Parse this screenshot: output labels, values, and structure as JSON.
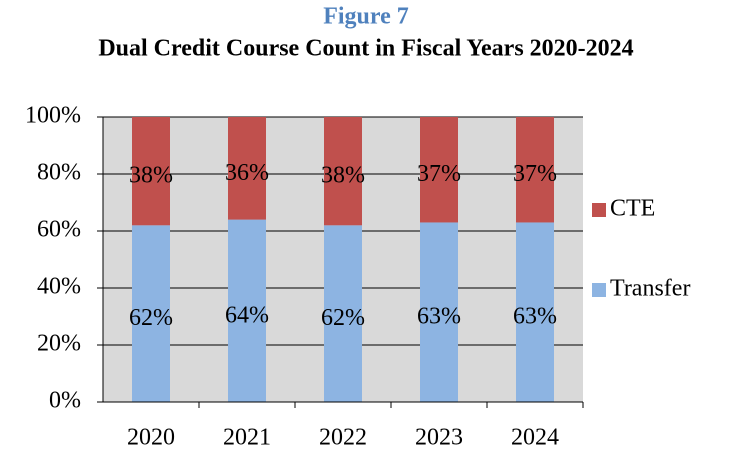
{
  "chart_data": {
    "type": "stacked_bar_100",
    "title": "Figure 7",
    "subtitle": "Dual Credit Course Count in Fiscal Years 2020-2024",
    "categories": [
      "2020",
      "2021",
      "2022",
      "2023",
      "2024"
    ],
    "series": [
      {
        "name": "Transfer",
        "color": "#8db4e2",
        "values": [
          62,
          64,
          62,
          63,
          63
        ],
        "value_labels": [
          "62%",
          "64%",
          "62%",
          "63%",
          "63%"
        ]
      },
      {
        "name": "CTE",
        "color": "#c0504d",
        "values": [
          38,
          36,
          38,
          37,
          37
        ],
        "value_labels": [
          "38%",
          "36%",
          "38%",
          "37%",
          "37%"
        ]
      }
    ],
    "ylim": [
      0,
      100
    ],
    "yticks": [
      {
        "value": 0,
        "label": "0%"
      },
      {
        "value": 20,
        "label": "20%"
      },
      {
        "value": 40,
        "label": "40%"
      },
      {
        "value": 60,
        "label": "60%"
      },
      {
        "value": 80,
        "label": "80%"
      },
      {
        "value": 100,
        "label": "100%"
      }
    ],
    "grid": true,
    "legend": "right"
  }
}
